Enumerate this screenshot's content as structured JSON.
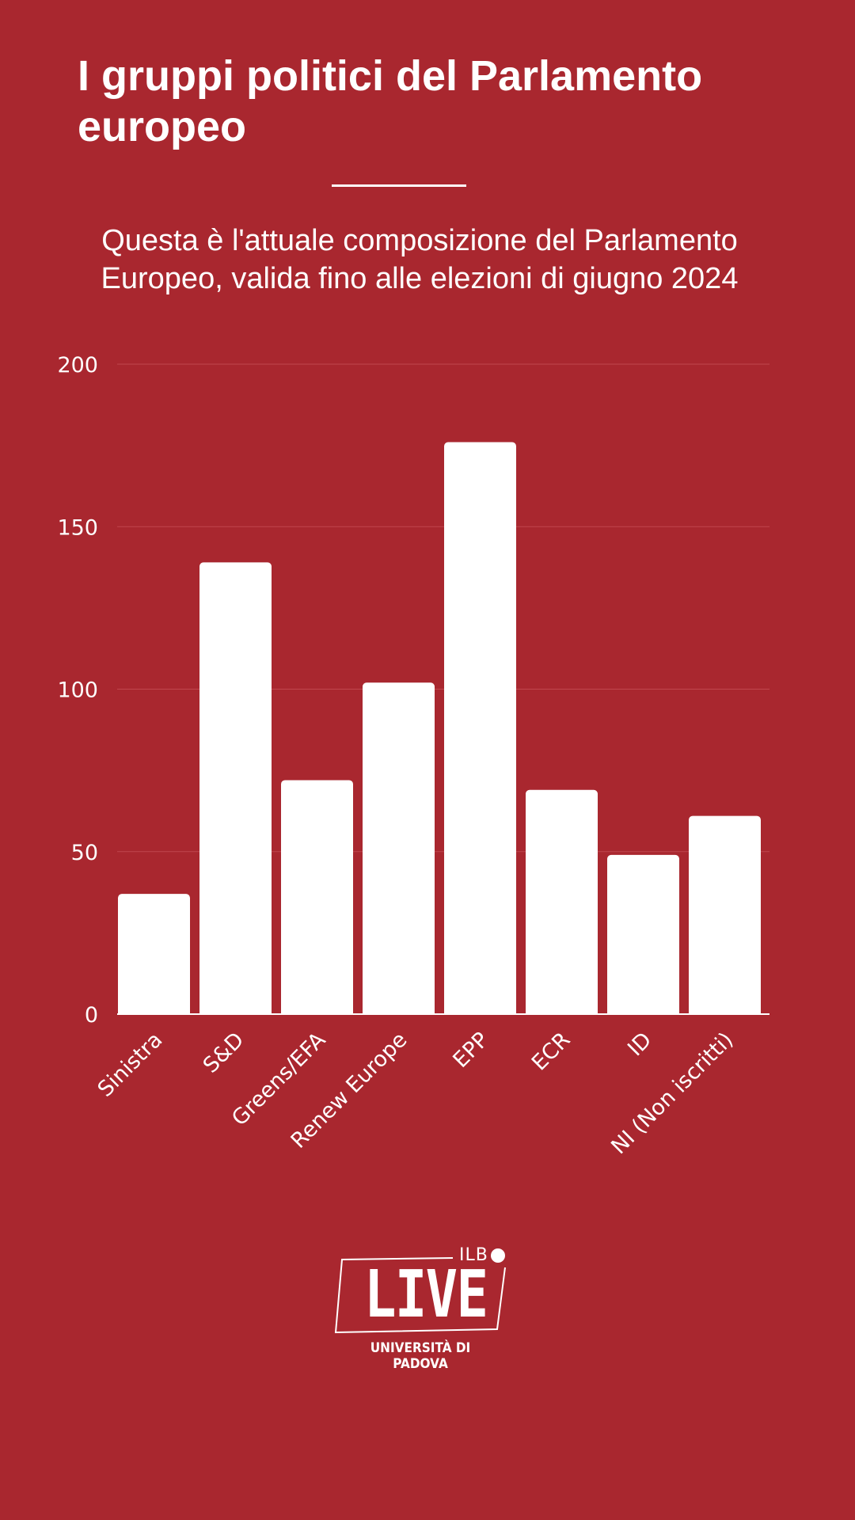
{
  "header": {
    "title": "I gruppi politici del Parlamento europeo",
    "subtitle": "Questa è l'attuale composizione del Parlamento Europeo, valida fino alle elezioni di giugno 2024"
  },
  "colors": {
    "background": "#a9272f",
    "bars": "#ffffff",
    "gridlines": "#c0474e",
    "text": "#ffffff"
  },
  "chart_data": {
    "type": "bar",
    "categories": [
      "Sinistra",
      "S&D",
      "Greens/EFA",
      "Renew Europe",
      "EPP",
      "ECR",
      "ID",
      "NI (Non iscritti)"
    ],
    "values": [
      37,
      139,
      72,
      102,
      176,
      69,
      49,
      61
    ],
    "title": "",
    "xlabel": "",
    "ylabel": "",
    "ylim": [
      0,
      200
    ],
    "yticks": [
      0,
      50,
      100,
      150,
      200
    ],
    "grid": true,
    "legend": "none"
  },
  "logo": {
    "tag": "ILB",
    "word": "LIVE",
    "sub": "UNIVERSITÀ DI PADOVA"
  }
}
